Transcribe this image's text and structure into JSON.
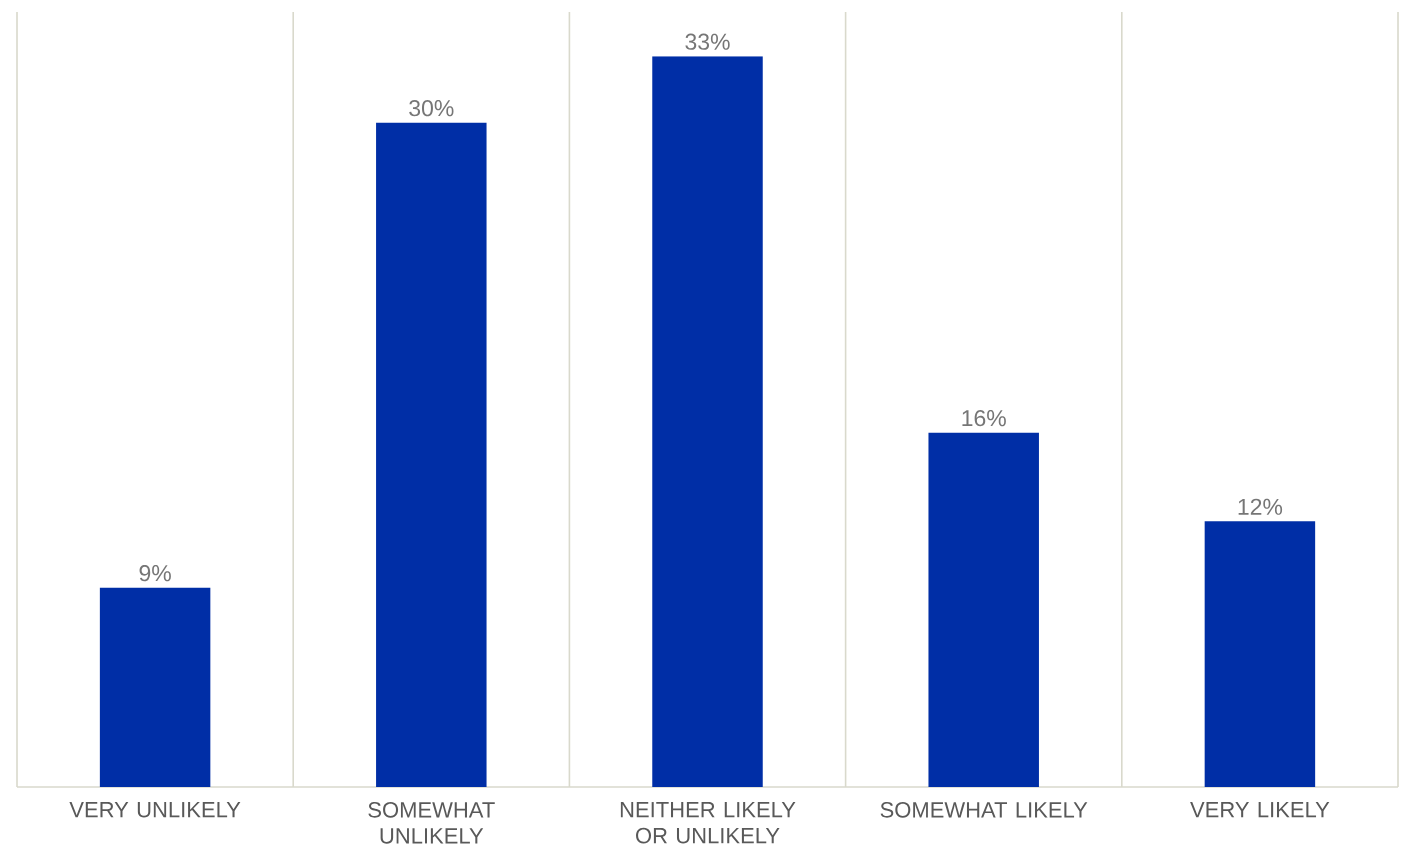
{
  "chart_data": {
    "type": "bar",
    "categories": [
      "VERY UNLIKELY",
      "SOMEWHAT UNLIKELY",
      "NEITHER LIKELY OR UNLIKELY",
      "SOMEWHAT LIKELY",
      "VERY LIKELY"
    ],
    "values": [
      9,
      30,
      33,
      16,
      12
    ],
    "value_labels": [
      "9%",
      "30%",
      "33%",
      "16%",
      "12%"
    ],
    "color": "#002ea6",
    "ylim": [
      0,
      35
    ],
    "grid": "x"
  }
}
